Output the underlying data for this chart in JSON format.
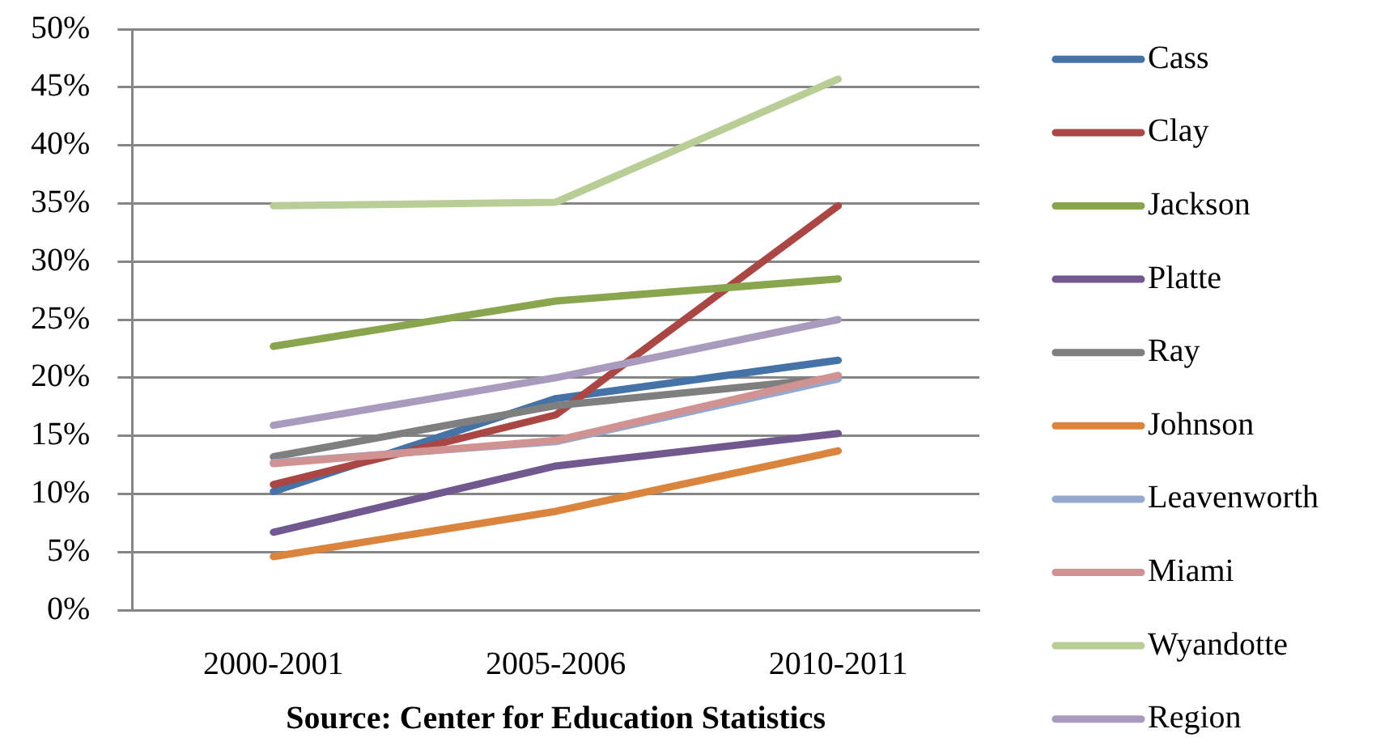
{
  "chart_data": {
    "type": "line",
    "categories": [
      "2000-2001",
      "2005-2006",
      "2010-2011"
    ],
    "series": [
      {
        "name": "Cass",
        "color": "#4572a7",
        "values": [
          10.2,
          18.2,
          21.5
        ]
      },
      {
        "name": "Clay",
        "color": "#aa4643",
        "values": [
          10.8,
          16.8,
          34.8
        ]
      },
      {
        "name": "Jackson",
        "color": "#89a54e",
        "values": [
          22.7,
          26.6,
          28.5
        ]
      },
      {
        "name": "Platte",
        "color": "#71588f",
        "values": [
          6.7,
          12.4,
          15.2
        ]
      },
      {
        "name": "Ray",
        "color": "#7f7f7f",
        "values": [
          13.2,
          17.6,
          20.0
        ]
      },
      {
        "name": "Johnson",
        "color": "#db843d",
        "values": [
          4.6,
          8.5,
          13.7
        ]
      },
      {
        "name": "Leavenworth",
        "color": "#93a9cf",
        "values": [
          12.7,
          14.5,
          19.9
        ]
      },
      {
        "name": "Miami",
        "color": "#d19392",
        "values": [
          12.6,
          14.6,
          20.2
        ]
      },
      {
        "name": "Wyandotte",
        "color": "#b9cd96",
        "values": [
          34.8,
          35.1,
          45.7
        ]
      },
      {
        "name": "Region",
        "color": "#a99bbd",
        "values": [
          15.9,
          20.0,
          25.0
        ]
      }
    ],
    "ylim": [
      0,
      50
    ],
    "yticks": [
      {
        "value": 0,
        "label": "0%"
      },
      {
        "value": 5,
        "label": "5%"
      },
      {
        "value": 10,
        "label": "10%"
      },
      {
        "value": 15,
        "label": "15%"
      },
      {
        "value": 20,
        "label": "20%"
      },
      {
        "value": 25,
        "label": "25%"
      },
      {
        "value": 30,
        "label": "30%"
      },
      {
        "value": 35,
        "label": "35%"
      },
      {
        "value": 40,
        "label": "40%"
      },
      {
        "value": 45,
        "label": "45%"
      },
      {
        "value": 50,
        "label": "50%"
      }
    ],
    "grid": "y",
    "legend": "right",
    "marker": "none",
    "line_style": "solid",
    "annotations": [
      "Source: Center for Education Statistics"
    ]
  }
}
